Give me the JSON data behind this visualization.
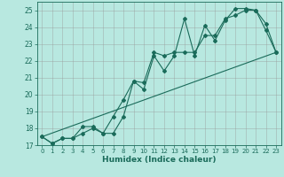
{
  "xlabel": "Humidex (Indice chaleur)",
  "xlim": [
    -0.5,
    23.5
  ],
  "ylim": [
    17,
    25.5
  ],
  "yticks": [
    17,
    18,
    19,
    20,
    21,
    22,
    23,
    24,
    25
  ],
  "xticks": [
    0,
    1,
    2,
    3,
    4,
    5,
    6,
    7,
    8,
    9,
    10,
    11,
    12,
    13,
    14,
    15,
    16,
    17,
    18,
    19,
    20,
    21,
    22,
    23
  ],
  "bg_color": "#b8e8e0",
  "grid_color": "#999999",
  "line_color": "#1a6b5a",
  "line1_x": [
    0,
    1,
    2,
    3,
    4,
    5,
    6,
    7,
    8,
    9,
    10,
    11,
    12,
    13,
    14,
    15,
    16,
    17,
    18,
    19,
    20,
    21,
    22,
    23
  ],
  "line1_y": [
    17.5,
    17.1,
    17.4,
    17.4,
    17.7,
    18.0,
    17.7,
    17.7,
    18.7,
    20.8,
    20.3,
    22.3,
    21.4,
    22.3,
    24.5,
    22.3,
    24.1,
    23.2,
    24.4,
    25.1,
    25.1,
    25.0,
    23.8,
    22.5
  ],
  "line2_x": [
    0,
    1,
    2,
    3,
    4,
    5,
    6,
    7,
    8,
    9,
    10,
    11,
    12,
    13,
    14,
    15,
    16,
    17,
    18,
    19,
    20,
    21,
    22,
    23
  ],
  "line2_y": [
    17.5,
    17.1,
    17.4,
    17.4,
    18.1,
    18.1,
    17.7,
    18.7,
    19.7,
    20.8,
    20.7,
    22.5,
    22.3,
    22.5,
    22.5,
    22.5,
    23.5,
    23.5,
    24.5,
    24.7,
    25.0,
    25.0,
    24.2,
    22.5
  ],
  "line3_x": [
    0,
    23
  ],
  "line3_y": [
    17.5,
    22.5
  ]
}
